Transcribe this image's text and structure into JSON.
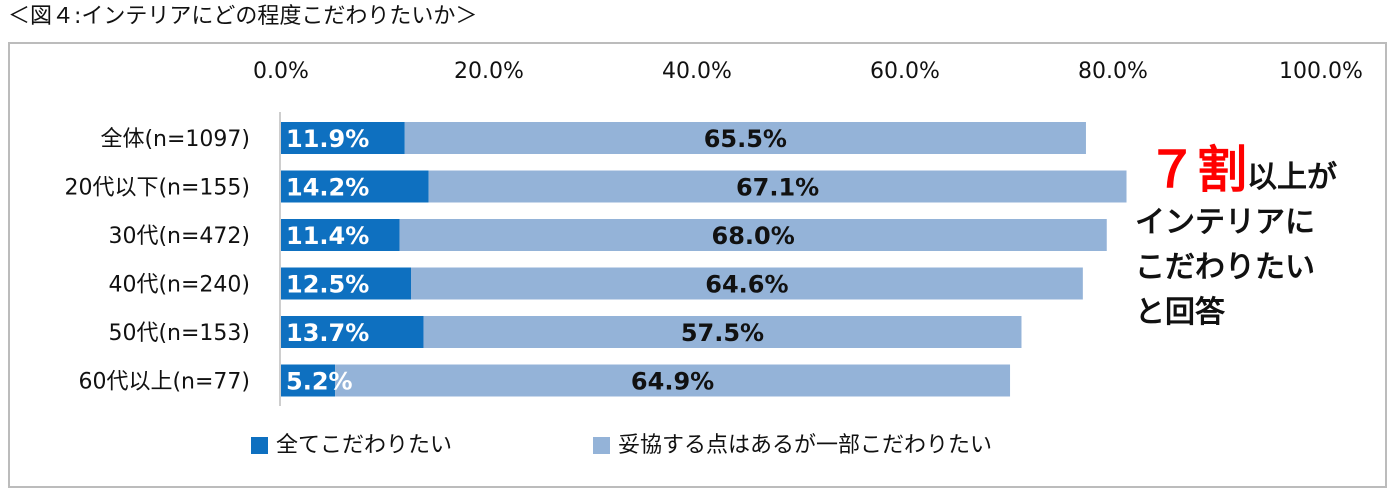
{
  "figure_title": "＜図４:インテリアにどの程度こだわりたいか＞",
  "callout": {
    "big": "７割",
    "rest1": "以上が",
    "line2": "インテリアに",
    "line3": "こだわりたい",
    "line4": "と回答"
  },
  "colors": {
    "series1": "#0e70c0",
    "series2": "#94b3d8",
    "axis": "#bdbdbd",
    "accent": "#ff0000"
  },
  "chart_data": {
    "type": "bar",
    "orientation": "horizontal",
    "stacked": true,
    "categories": [
      "全体(n=1097)",
      "20代以下(n=155)",
      "30代(n=472)",
      "40代(n=240)",
      "50代(n=153)",
      "60代以上(n=77)"
    ],
    "series": [
      {
        "name": "全てこだわりたい",
        "values": [
          11.9,
          14.2,
          11.4,
          12.5,
          13.7,
          5.2
        ]
      },
      {
        "name": "妥協する点はあるが一部こだわりたい",
        "values": [
          65.5,
          67.1,
          68.0,
          64.6,
          57.5,
          64.9
        ]
      }
    ],
    "data_labels": [
      [
        "11.9%",
        "14.2%",
        "11.4%",
        "12.5%",
        "13.7%",
        "5.2%"
      ],
      [
        "65.5%",
        "67.1%",
        "68.0%",
        "64.6%",
        "57.5%",
        "64.9%"
      ]
    ],
    "x_ticks": [
      "0.0%",
      "20.0%",
      "40.0%",
      "60.0%",
      "80.0%",
      "100.0%"
    ],
    "xlim": [
      0,
      100
    ],
    "axis_position": "top",
    "legend_position": "bottom",
    "grid": false
  }
}
